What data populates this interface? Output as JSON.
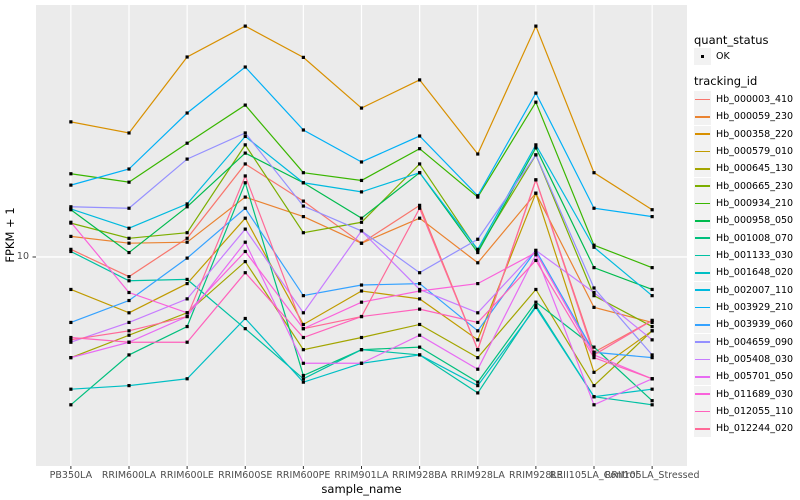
{
  "figure": {
    "background": "#FFFFFF",
    "panel_background": "#EBEBEB",
    "gridline_color": "#FFFFFF",
    "tick_color": "#333333",
    "tick_text_color": "#4D4D4D",
    "point_color": "#000000"
  },
  "chart_data": {
    "type": "line",
    "title": "",
    "xlabel": "sample_name",
    "ylabel": "FPKM + 1",
    "y_scale": "log10",
    "ylim": [
      1.57,
      93.2
    ],
    "y_tick_labels": [
      "10"
    ],
    "y_tick_values": [
      10
    ],
    "grid": "major",
    "legend_position": "right",
    "categories": [
      "PB350LA",
      "RRIM600LA",
      "RRIM600LE",
      "RRIM600SE",
      "RRIM600PE",
      "RRIM901LA",
      "RRIM928BA",
      "RRIM928LA",
      "RRIM928LE",
      "RRII105LA_Control",
      "RRII105LA_Stressed"
    ],
    "legend": {
      "quant_status_title": "quant_status",
      "quant_status_items": [
        {
          "label": "OK",
          "shape": "square-point"
        }
      ],
      "tracking_id_title": "tracking_id"
    },
    "series": [
      {
        "name": "Hb_000003_410",
        "color": "#F8766D",
        "values": [
          10.7,
          8.4,
          11.8,
          22.8,
          16.4,
          11.3,
          15.8,
          4.4,
          19.8,
          4.3,
          5.7
        ]
      },
      {
        "name": "Hb_000059_230",
        "color": "#EA8331",
        "values": [
          12.0,
          11.3,
          11.4,
          17.0,
          14.3,
          11.3,
          14.1,
          9.5,
          17.6,
          6.4,
          5.6
        ]
      },
      {
        "name": "Hb_000358_220",
        "color": "#D89000",
        "values": [
          33.1,
          30.0,
          58.8,
          77.3,
          58.6,
          37.4,
          48.0,
          24.9,
          77.3,
          21.1,
          15.2
        ]
      },
      {
        "name": "Hb_000579_010",
        "color": "#C09B00",
        "values": [
          7.5,
          6.1,
          7.9,
          14.1,
          5.5,
          7.4,
          6.9,
          4.8,
          17.6,
          3.6,
          5.2
        ]
      },
      {
        "name": "Hb_000645_130",
        "color": "#A3A500",
        "values": [
          4.1,
          5.0,
          6.1,
          9.6,
          4.4,
          4.9,
          5.5,
          4.1,
          7.5,
          3.2,
          5.2
        ]
      },
      {
        "name": "Hb_000665_230",
        "color": "#7CAE00",
        "values": [
          13.5,
          11.8,
          12.4,
          27.0,
          12.4,
          13.6,
          22.8,
          10.6,
          24.7,
          7.1,
          5.4
        ]
      },
      {
        "name": "Hb_000934_210",
        "color": "#39B600",
        "values": [
          20.9,
          19.4,
          27.4,
          38.4,
          21.1,
          19.7,
          26.1,
          17.0,
          39.4,
          11.1,
          9.1
        ]
      },
      {
        "name": "Hb_000958_050",
        "color": "#00BB4E",
        "values": [
          15.2,
          10.4,
          15.6,
          25.1,
          19.3,
          14.1,
          21.1,
          10.4,
          26.3,
          9.1,
          7.5
        ]
      },
      {
        "name": "Hb_001008_070",
        "color": "#00BF7D",
        "values": [
          2.7,
          4.2,
          5.4,
          19.3,
          3.5,
          4.4,
          4.5,
          3.3,
          6.7,
          4.5,
          2.8
        ]
      },
      {
        "name": "Hb_001133_030",
        "color": "#00C1A3",
        "values": [
          10.5,
          8.1,
          8.2,
          5.3,
          3.4,
          4.4,
          4.2,
          3.0,
          6.5,
          2.9,
          2.7
        ]
      },
      {
        "name": "Hb_001648_020",
        "color": "#00BFC4",
        "values": [
          3.1,
          3.2,
          3.4,
          5.8,
          3.3,
          3.9,
          4.2,
          3.2,
          6.4,
          2.9,
          3.1
        ]
      },
      {
        "name": "Hb_002007_110",
        "color": "#00BADE",
        "values": [
          15.3,
          12.9,
          16.0,
          29.1,
          19.3,
          17.8,
          21.1,
          10.7,
          27.0,
          10.9,
          7.1
        ]
      },
      {
        "name": "Hb_003929_210",
        "color": "#00B0F6",
        "values": [
          18.9,
          21.8,
          35.8,
          53.8,
          30.8,
          23.2,
          29.2,
          17.2,
          42.7,
          15.4,
          14.3
        ]
      },
      {
        "name": "Hb_003939_060",
        "color": "#35A2FF",
        "values": [
          5.6,
          6.8,
          9.9,
          15.4,
          7.1,
          7.8,
          7.9,
          5.2,
          10.6,
          4.3,
          4.1
        ]
      },
      {
        "name": "Hb_004659_090",
        "color": "#9590FF",
        "values": [
          15.6,
          15.4,
          23.8,
          30.0,
          15.7,
          12.6,
          8.7,
          11.7,
          24.7,
          7.6,
          4.2
        ]
      },
      {
        "name": "Hb_005408_030",
        "color": "#C77CFF",
        "values": [
          4.7,
          5.6,
          6.9,
          12.8,
          6.1,
          12.6,
          7.5,
          6.1,
          10.6,
          7.3,
          4.8
        ]
      },
      {
        "name": "Hb_005701_050",
        "color": "#E76BF3",
        "values": [
          4.1,
          4.7,
          5.9,
          11.4,
          3.9,
          3.9,
          5.0,
          3.7,
          10.2,
          2.7,
          3.4
        ]
      },
      {
        "name": "Hb_011689_030",
        "color": "#FA62DB",
        "values": [
          13.6,
          7.3,
          6.1,
          10.5,
          5.3,
          6.7,
          7.4,
          7.9,
          10.4,
          4.2,
          3.4
        ]
      },
      {
        "name": "Hb_012055_110",
        "color": "#FF62BC",
        "values": [
          4.9,
          4.7,
          4.7,
          8.7,
          4.9,
          5.9,
          6.3,
          5.6,
          9.7,
          4.1,
          3.4
        ]
      },
      {
        "name": "Hb_012244_020",
        "color": "#FF6A98",
        "values": [
          4.8,
          5.2,
          5.9,
          20.5,
          5.3,
          5.9,
          15.4,
          4.4,
          19.8,
          4.2,
          5.7
        ]
      }
    ]
  }
}
